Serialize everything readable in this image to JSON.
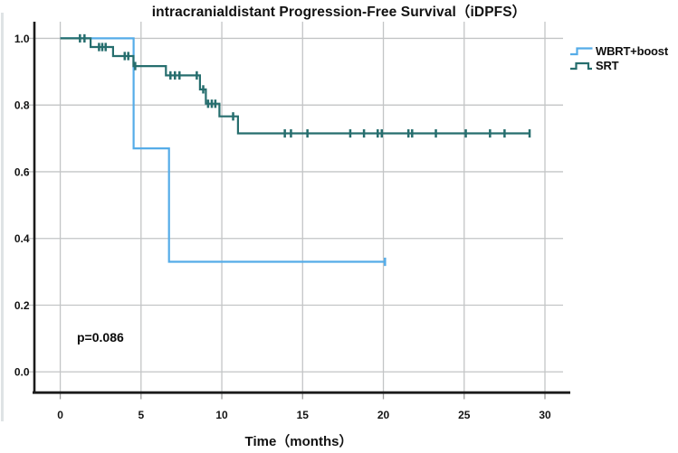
{
  "figure": {
    "title": "intracranialdistant Progression-Free Survival（iDPFS）",
    "x_axis_title": "Time（months）",
    "p_value_label": "p=0.086"
  },
  "chart_data": {
    "type": "line",
    "subtype": "kaplan_meier_step_survival",
    "title": "intracranialdistant Progression-Free Survival（iDPFS）",
    "xlabel": "Time（months）",
    "ylabel": "",
    "grid": true,
    "legend_position": "top-right-outside",
    "xlim": [
      -1.6,
      31.12
    ],
    "ylim": [
      -0.059,
      1.05
    ],
    "x_ticks": [
      {
        "value": 0,
        "label": "0"
      },
      {
        "value": 5,
        "label": "5"
      },
      {
        "value": 10,
        "label": "10"
      },
      {
        "value": 15,
        "label": "15"
      },
      {
        "value": 20,
        "label": "20"
      },
      {
        "value": 25,
        "label": "25"
      },
      {
        "value": 30,
        "label": "30"
      }
    ],
    "y_ticks": [
      {
        "value": 0.0,
        "label": "0.0"
      },
      {
        "value": 0.2,
        "label": "0.2"
      },
      {
        "value": 0.4,
        "label": "0.4"
      },
      {
        "value": 0.6,
        "label": "0.6"
      },
      {
        "value": 0.8,
        "label": "0.8"
      },
      {
        "value": 1.0,
        "label": "1.0"
      }
    ],
    "annotations": [
      {
        "text": "p=0.086",
        "x": 2.7,
        "y": 0.1
      }
    ],
    "colors": {
      "grid": "#c3c5c6",
      "outer_tick": "#9b9b9b",
      "axis": "#1b1b1b",
      "text": "#141414"
    },
    "series": [
      {
        "name": "WBRT+boost",
        "color": "#55ACE8",
        "steps": [
          [
            0,
            1.0
          ],
          [
            4.54,
            1.0
          ],
          [
            4.54,
            0.67
          ],
          [
            6.73,
            0.67
          ],
          [
            6.73,
            0.33
          ],
          [
            20.1,
            0.33
          ]
        ],
        "censors": [
          [
            20.1,
            0.33
          ]
        ]
      },
      {
        "name": "SRT",
        "color": "#266E6E",
        "steps": [
          [
            0,
            1.0
          ],
          [
            1.88,
            1.0
          ],
          [
            1.88,
            0.974
          ],
          [
            3.27,
            0.974
          ],
          [
            3.27,
            0.947
          ],
          [
            4.53,
            0.947
          ],
          [
            4.53,
            0.917
          ],
          [
            6.54,
            0.917
          ],
          [
            6.54,
            0.889
          ],
          [
            8.65,
            0.889
          ],
          [
            8.65,
            0.847
          ],
          [
            9.01,
            0.847
          ],
          [
            9.01,
            0.804
          ],
          [
            9.85,
            0.804
          ],
          [
            9.85,
            0.766
          ],
          [
            11.0,
            0.766
          ],
          [
            11.0,
            0.715
          ],
          [
            29.05,
            0.715
          ]
        ],
        "censors": [
          [
            1.22,
            1.0
          ],
          [
            1.5,
            1.0
          ],
          [
            2.4,
            0.974
          ],
          [
            2.6,
            0.974
          ],
          [
            2.81,
            0.974
          ],
          [
            3.99,
            0.947
          ],
          [
            4.21,
            0.947
          ],
          [
            4.64,
            0.917
          ],
          [
            6.82,
            0.889
          ],
          [
            7.1,
            0.889
          ],
          [
            7.38,
            0.889
          ],
          [
            8.45,
            0.889
          ],
          [
            8.85,
            0.847
          ],
          [
            9.15,
            0.804
          ],
          [
            9.38,
            0.804
          ],
          [
            9.6,
            0.804
          ],
          [
            10.7,
            0.766
          ],
          [
            13.9,
            0.715
          ],
          [
            14.28,
            0.715
          ],
          [
            15.3,
            0.715
          ],
          [
            17.95,
            0.715
          ],
          [
            18.8,
            0.715
          ],
          [
            19.65,
            0.715
          ],
          [
            19.9,
            0.715
          ],
          [
            21.55,
            0.715
          ],
          [
            21.78,
            0.715
          ],
          [
            23.25,
            0.715
          ],
          [
            25.1,
            0.715
          ],
          [
            26.6,
            0.715
          ],
          [
            27.5,
            0.715
          ],
          [
            29.05,
            0.715
          ]
        ]
      }
    ]
  }
}
